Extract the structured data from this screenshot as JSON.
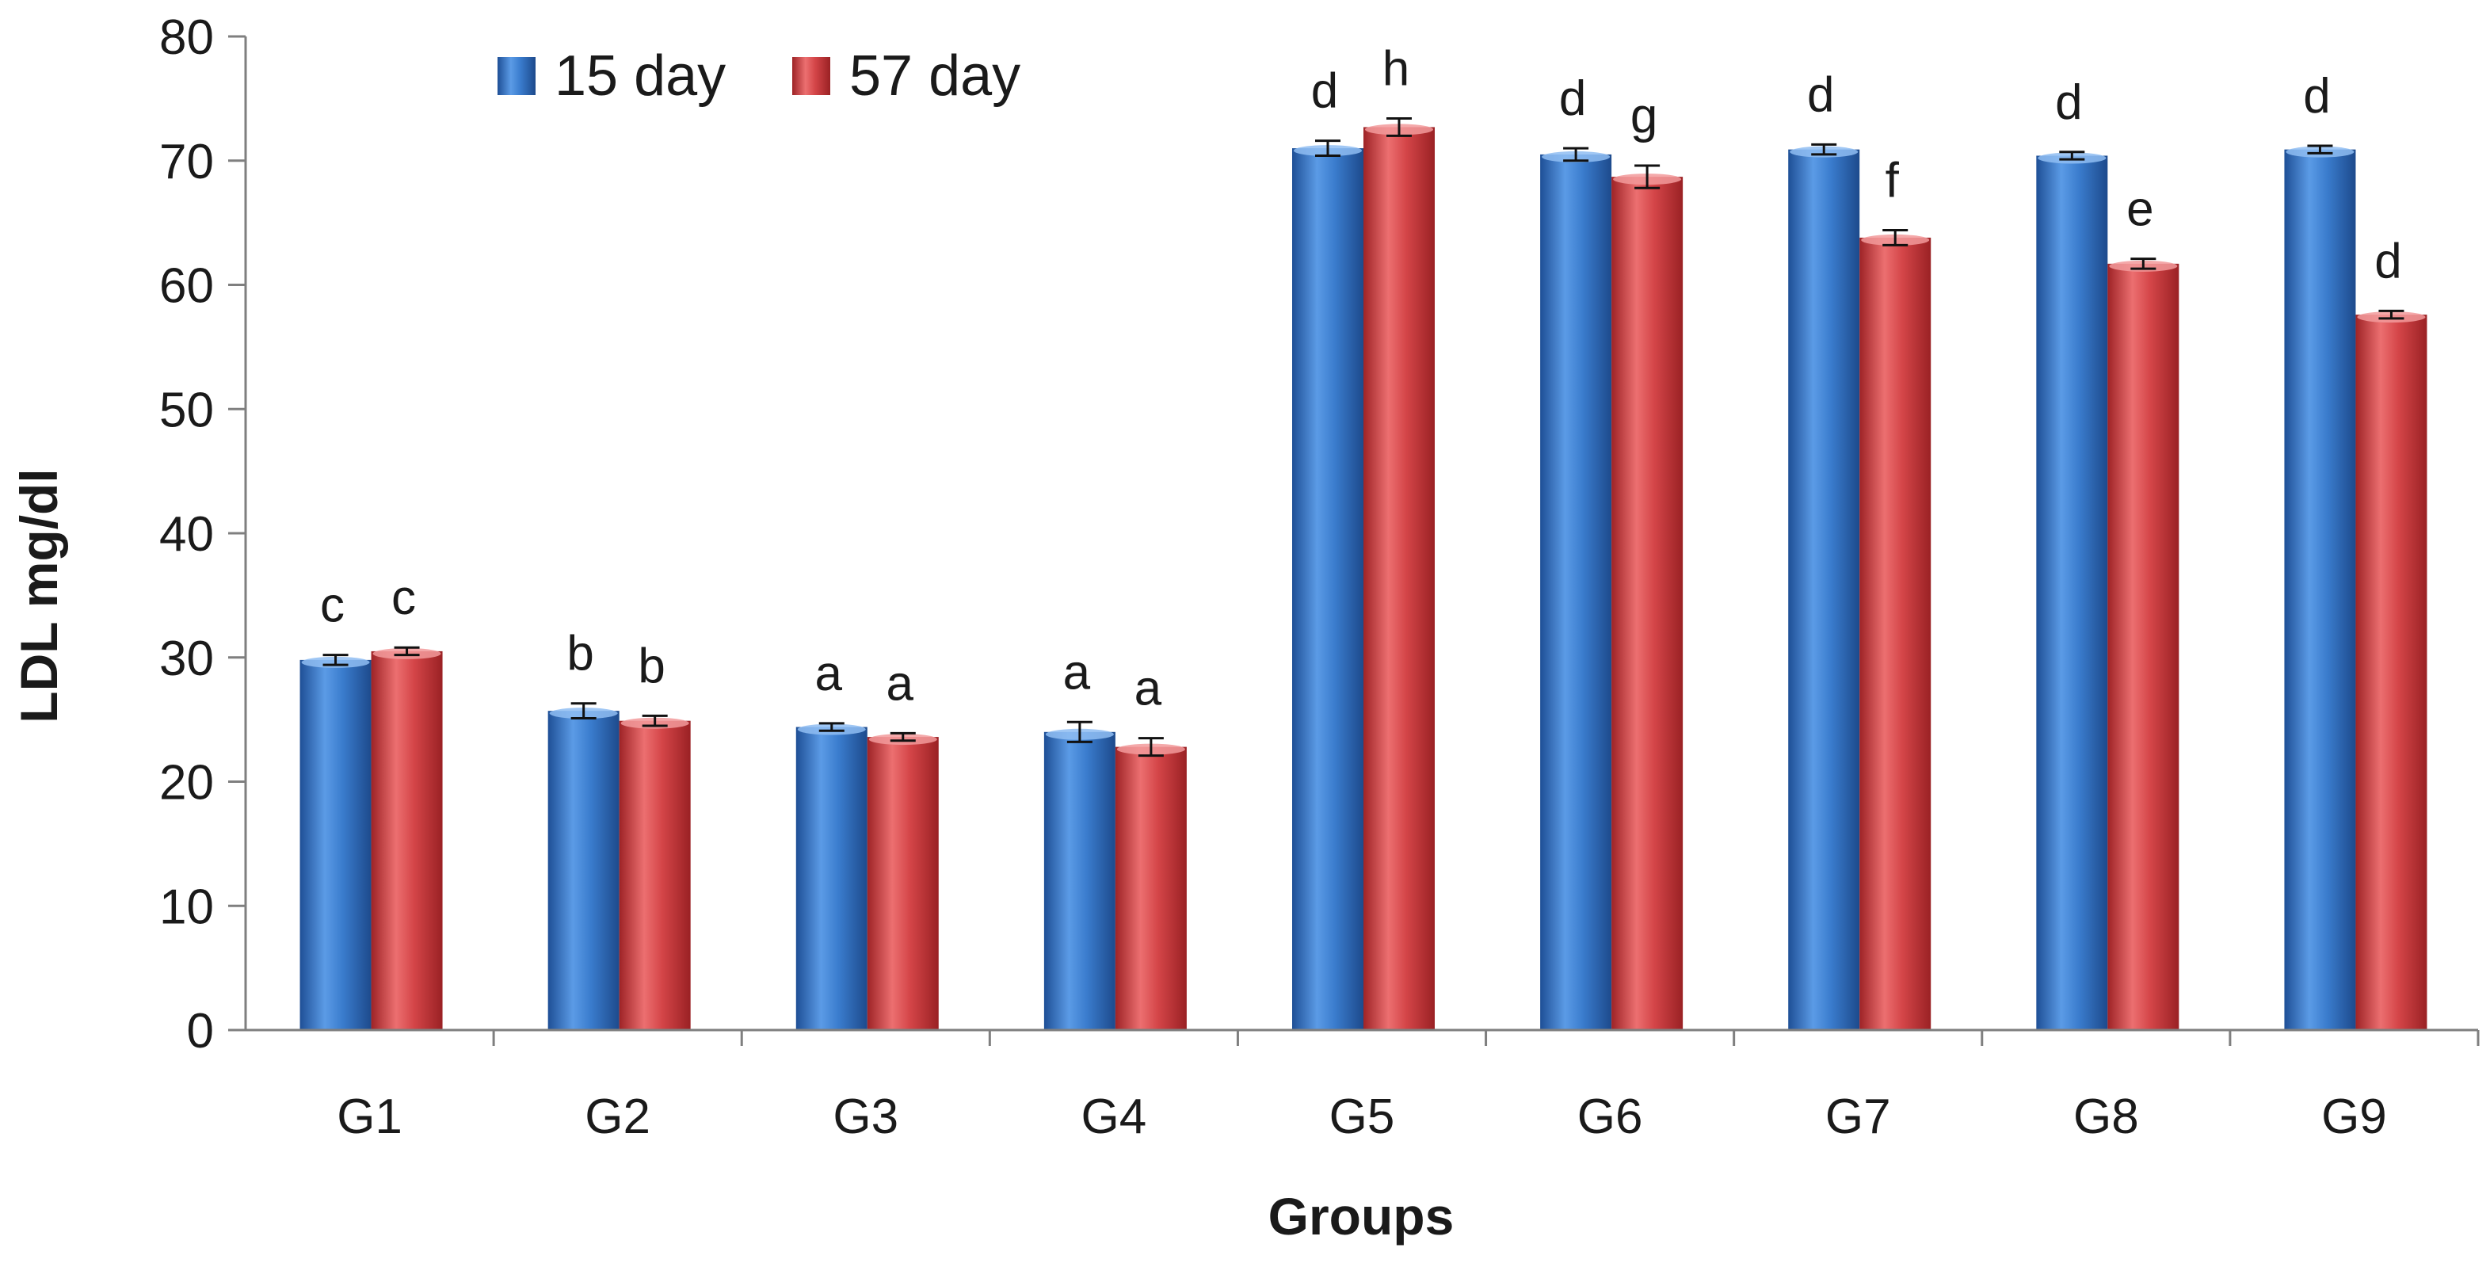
{
  "chart_data": {
    "type": "bar",
    "title": "",
    "xlabel": "Groups",
    "ylabel": "LDL mg/dl",
    "ylim": [
      0,
      80
    ],
    "yticks": [
      0,
      10,
      20,
      30,
      40,
      50,
      60,
      70,
      80
    ],
    "grid": false,
    "legend_position": "top-left",
    "categories": [
      "G1",
      "G2",
      "G3",
      "G4",
      "G5",
      "G6",
      "G7",
      "G8",
      "G9"
    ],
    "series": [
      {
        "name": "15 day",
        "color": "#3d7fd1",
        "values": [
          29.8,
          25.7,
          24.4,
          24.0,
          71.0,
          70.5,
          70.9,
          70.4,
          70.9
        ],
        "errors": [
          0.4,
          0.6,
          0.3,
          0.8,
          0.6,
          0.5,
          0.4,
          0.3,
          0.3
        ],
        "labels": [
          "c",
          "b",
          "a",
          "a",
          "d",
          "d",
          "d",
          "d",
          "d"
        ]
      },
      {
        "name": "57 day",
        "color": "#d9474a",
        "values": [
          30.5,
          24.9,
          23.6,
          22.8,
          72.7,
          68.7,
          63.8,
          61.7,
          57.6
        ],
        "errors": [
          0.3,
          0.4,
          0.3,
          0.7,
          0.7,
          0.9,
          0.6,
          0.4,
          0.3
        ],
        "labels": [
          "c",
          "b",
          "a",
          "a",
          "h",
          "g",
          "f",
          "e",
          "d"
        ]
      }
    ]
  }
}
